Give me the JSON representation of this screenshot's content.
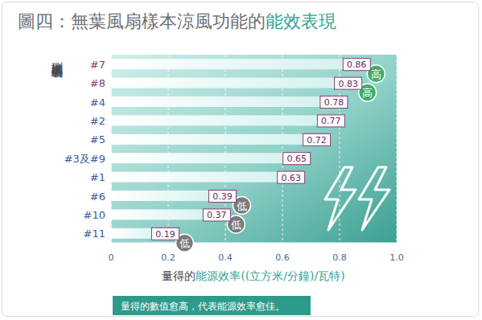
{
  "chart_data": {
    "type": "bar",
    "orientation": "horizontal",
    "title": [
      "圖四：無葉風扇樣本涼風功能的",
      "能效表現"
    ],
    "y_label": "測試樣本的編號",
    "x_label": [
      "量得的",
      "能源效率((立方米/分鐘)/瓦特)"
    ],
    "note": "量得的數值愈高，代表能源效率愈佳。",
    "categories": [
      "#7",
      "#8",
      "#4",
      "#2",
      "#5",
      "#3及#9",
      "#1",
      "#6",
      "#10",
      "#11"
    ],
    "values": [
      0.86,
      0.83,
      0.78,
      0.77,
      0.72,
      0.65,
      0.63,
      0.39,
      0.37,
      0.19
    ],
    "color": "#d4f1ef",
    "xlim": [
      0,
      1
    ],
    "xticks": [
      0,
      0.2,
      0.4,
      0.6,
      0.8,
      {
        "value": 1,
        "label": "1.0"
      }
    ],
    "grid": true,
    "data_labels": true,
    "annotations": [
      {
        "text": "高",
        "category": "#7",
        "color": "#3fae6a"
      },
      {
        "text": "高",
        "category": "#8",
        "color": "#3fae6a"
      },
      {
        "text": "低",
        "category": "#6",
        "color": "#7a7a7a"
      },
      {
        "text": "低",
        "category": "#10",
        "color": "#7a7a7a"
      },
      {
        "text": "低",
        "category": "#11",
        "color": "#7a7a7a"
      }
    ]
  }
}
